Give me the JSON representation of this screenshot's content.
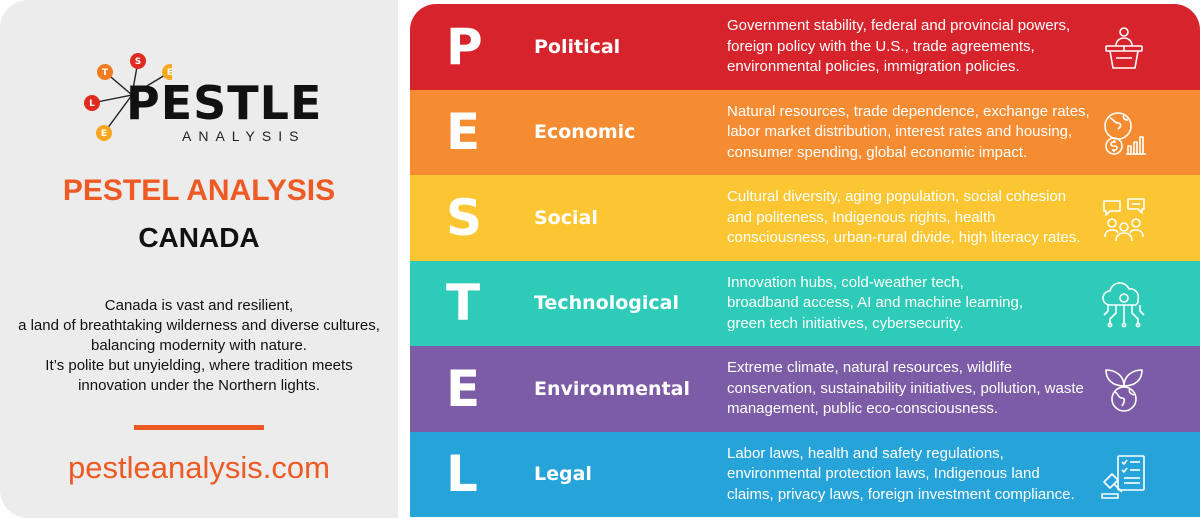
{
  "logo": {
    "letters": [
      "T",
      "S",
      "E",
      "L",
      "E"
    ],
    "wordmark": "PESTLE",
    "subtitle": "ANALYSIS"
  },
  "title": "PESTEL ANALYSIS",
  "country": "CANADA",
  "description": [
    "Canada is vast and resilient,",
    "a land of breathtaking wilderness and diverse cultures,",
    "balancing modernity with nature.",
    "It’s polite but unyielding, where tradition meets",
    "innovation under the Northern lights."
  ],
  "website": "pestleanalysis.com",
  "colors": {
    "accent": "#ee5a24",
    "political": "#d7232b",
    "economic": "#f68c32",
    "social": "#fbc632",
    "technological": "#2ecbb8",
    "environmental": "#7d5ca7",
    "legal": "#26a3d9"
  },
  "rows": [
    {
      "letter": "P",
      "name": "Political",
      "lines": [
        "Government stability, federal and provincial powers,",
        "foreign policy with the U.S., trade agreements,",
        "environmental policies, immigration policies."
      ],
      "icon": "podium-speaker-icon"
    },
    {
      "letter": "E",
      "name": "Economic",
      "lines": [
        "Natural resources, trade dependence, exchange rates,",
        "labor market distribution, interest rates and housing,",
        "consumer spending, global economic impact."
      ],
      "icon": "globe-money-chart-icon"
    },
    {
      "letter": "S",
      "name": "Social",
      "lines": [
        "Cultural diversity, aging population, social cohesion",
        "and politeness, Indigenous rights, health",
        "consciousness, urban-rural divide, high literacy rates."
      ],
      "icon": "people-chat-icon"
    },
    {
      "letter": "T",
      "name": "Technological",
      "lines": [
        "Innovation hubs, cold-weather tech,",
        "broadband access, AI and machine learning,",
        "green tech initiatives, cybersecurity."
      ],
      "icon": "cloud-circuit-icon"
    },
    {
      "letter": "E",
      "name": "Environmental",
      "lines": [
        "Extreme climate, natural resources, wildlife",
        "conservation, sustainability initiatives, pollution, waste",
        "management, public eco-consciousness."
      ],
      "icon": "eco-globe-icon"
    },
    {
      "letter": "L",
      "name": "Legal",
      "lines": [
        "Labor laws, health and safety regulations,",
        "environmental protection laws, Indigenous land",
        "claims, privacy laws, foreign investment compliance."
      ],
      "icon": "gavel-document-icon"
    }
  ]
}
